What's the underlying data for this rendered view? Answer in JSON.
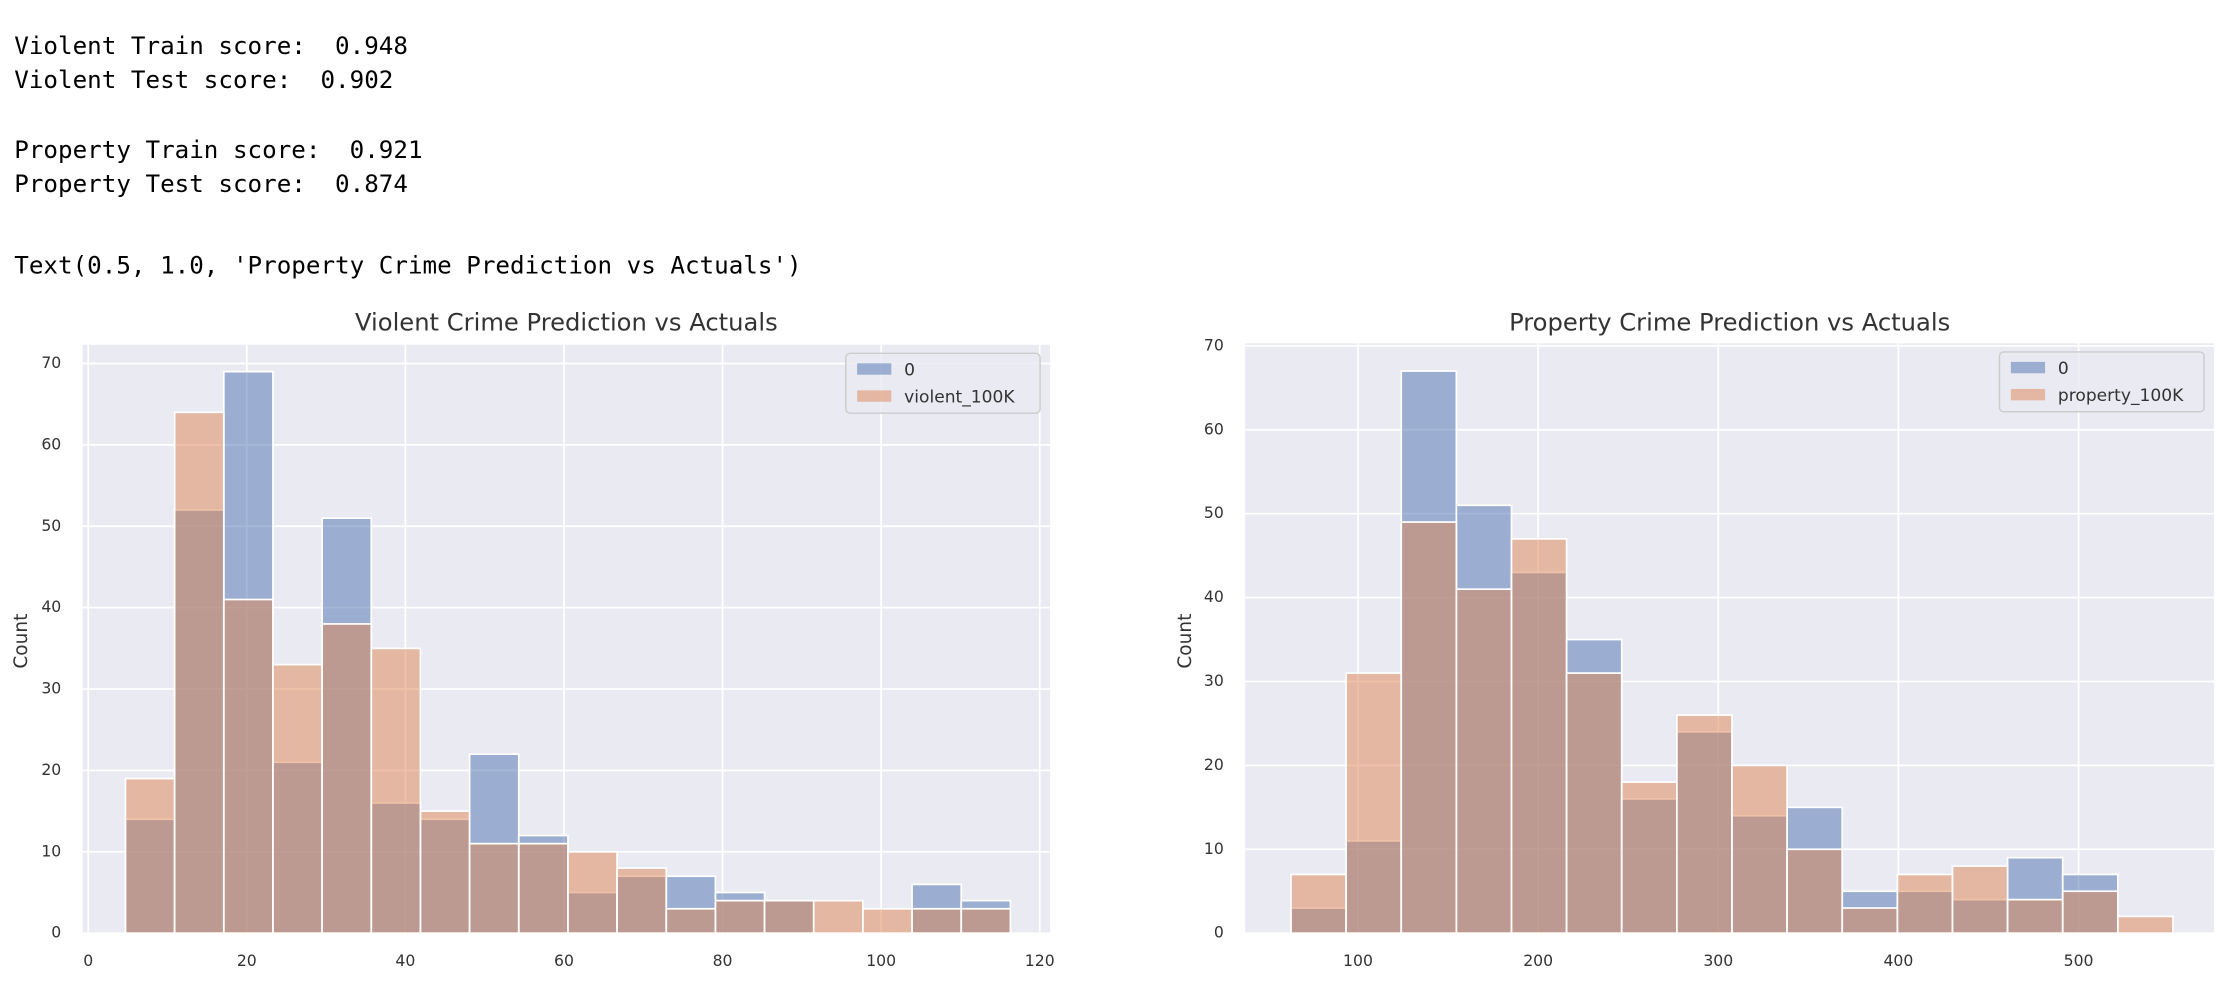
{
  "output_lines": [
    "Violent Train score:  0.948",
    "Violent Test score:  0.902",
    "Property Train score:  0.921",
    "Property Test score:  0.874",
    "Text(0.5, 1.0, 'Property Crime Prediction vs Actuals')"
  ],
  "chart_data": [
    {
      "type": "histogram",
      "title": "Violent Crime Prediction vs Actuals",
      "y_label": "Count",
      "bins": [
        4.7,
        10.9,
        17.1,
        23.3,
        29.5,
        35.7,
        41.9,
        48.1,
        54.3,
        60.5,
        66.7,
        72.9,
        79.1,
        85.3,
        91.5,
        97.7,
        103.9,
        110.1,
        116.3
      ],
      "series": [
        {
          "name": "0",
          "color": "#4c72b0",
          "values": [
            14,
            52,
            69,
            21,
            51,
            16,
            14,
            22,
            12,
            5,
            7,
            7,
            5,
            4,
            0,
            0,
            6,
            4
          ]
        },
        {
          "name": "violent_100K",
          "color": "#dd8452",
          "values": [
            19,
            64,
            41,
            33,
            38,
            35,
            15,
            11,
            11,
            10,
            8,
            3,
            4,
            4,
            4,
            3,
            3,
            3
          ]
        }
      ],
      "xlim": [
        -0.7,
        121.3
      ],
      "ylim": [
        0,
        72.3
      ],
      "xticks": [
        0,
        20,
        40,
        60,
        80,
        100,
        120
      ],
      "yticks": [
        0,
        10,
        20,
        30,
        40,
        50,
        60,
        70
      ],
      "grid": true,
      "legend": "upper right"
    },
    {
      "type": "histogram",
      "title": "Property Crime Prediction vs Actuals",
      "y_label": "Count",
      "bins": [
        62.8,
        93.4,
        124.0,
        154.6,
        185.2,
        215.8,
        246.4,
        277.0,
        307.6,
        338.2,
        368.8,
        399.4,
        430.0,
        460.6,
        491.2,
        521.8,
        552.4
      ],
      "series": [
        {
          "name": "0",
          "color": "#4c72b0",
          "values": [
            3,
            11,
            67,
            51,
            43,
            35,
            16,
            24,
            14,
            15,
            5,
            5,
            4,
            9,
            7,
            0
          ]
        },
        {
          "name": "property_100K",
          "color": "#dd8452",
          "values": [
            7,
            31,
            49,
            41,
            47,
            31,
            18,
            26,
            20,
            10,
            3,
            7,
            8,
            4,
            5,
            2
          ]
        }
      ],
      "xlim": [
        37.4,
        575.2
      ],
      "ylim": [
        0,
        70.3
      ],
      "xticks": [
        100,
        200,
        300,
        400,
        500
      ],
      "yticks": [
        0,
        10,
        20,
        30,
        40,
        50,
        60,
        70
      ],
      "grid": true,
      "legend": "upper right"
    }
  ]
}
